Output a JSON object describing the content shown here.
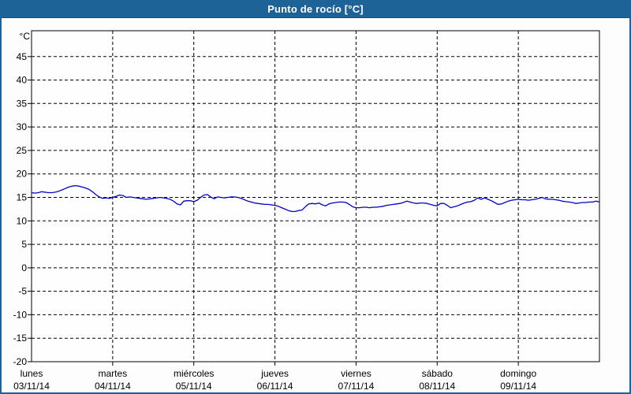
{
  "window": {
    "title": "Punto de rocío [°C]"
  },
  "colors": {
    "titlebar_bg": "#1d6398",
    "titlebar_border": "#155078",
    "frame_border": "#1d6398",
    "title_text": "#ffffff",
    "series_line": "#0000c8",
    "grid": "#000000",
    "axis_text": "#000000",
    "page_bg": "#fdfdfd",
    "plot_bg": "#fefefe"
  },
  "chart_data": {
    "type": "line",
    "title": "Punto de rocío [°C]",
    "xlabel": "",
    "ylabel": "°C",
    "ylim": [
      -20,
      50.5
    ],
    "yticks": [
      45,
      40,
      35,
      30,
      25,
      20,
      15,
      10,
      5,
      0,
      -5,
      -10,
      -15,
      -20
    ],
    "grid": "dashed",
    "legend_position": "none",
    "x_axis": {
      "hours_per_day": 24,
      "days": [
        {
          "name": "lunes",
          "date": "03/11/14"
        },
        {
          "name": "martes",
          "date": "04/11/14"
        },
        {
          "name": "miércoles",
          "date": "05/11/14"
        },
        {
          "name": "jueves",
          "date": "06/11/14"
        },
        {
          "name": "viernes",
          "date": "07/11/14"
        },
        {
          "name": "sábado",
          "date": "08/11/14"
        },
        {
          "name": "domingo",
          "date": "09/11/14"
        }
      ]
    },
    "series": [
      {
        "name": "Punto de rocío",
        "unit": "°C",
        "color": "#0000c8",
        "step_hours": 1,
        "values": [
          16.0,
          15.9,
          16.0,
          16.2,
          16.1,
          16.0,
          16.0,
          16.1,
          16.3,
          16.6,
          16.9,
          17.2,
          17.4,
          17.5,
          17.4,
          17.2,
          17.0,
          16.7,
          16.2,
          15.6,
          15.1,
          14.8,
          14.9,
          14.8,
          15.0,
          15.2,
          15.5,
          15.4,
          15.0,
          15.1,
          15.0,
          14.9,
          14.8,
          14.7,
          14.6,
          14.7,
          14.8,
          14.9,
          15.0,
          14.9,
          14.8,
          14.6,
          14.2,
          13.6,
          13.4,
          14.2,
          14.3,
          14.3,
          14.1,
          14.4,
          15.0,
          15.5,
          15.6,
          15.1,
          14.7,
          15.1,
          15.0,
          14.9,
          15.0,
          15.1,
          15.1,
          15.0,
          14.8,
          14.5,
          14.2,
          14.0,
          13.8,
          13.7,
          13.6,
          13.5,
          13.5,
          13.4,
          13.3,
          13.1,
          12.8,
          12.5,
          12.2,
          12.0,
          12.0,
          12.2,
          12.3,
          13.0,
          13.6,
          13.7,
          13.6,
          13.8,
          13.4,
          13.2,
          13.6,
          13.8,
          13.9,
          14.0,
          14.0,
          13.9,
          13.5,
          13.0,
          12.8,
          12.8,
          12.9,
          12.9,
          12.8,
          12.9,
          12.9,
          13.0,
          13.1,
          13.3,
          13.4,
          13.5,
          13.6,
          13.7,
          13.9,
          14.2,
          14.0,
          13.8,
          13.7,
          13.8,
          13.8,
          13.7,
          13.5,
          13.3,
          13.2,
          13.7,
          13.7,
          13.3,
          12.8,
          13.0,
          13.2,
          13.5,
          13.8,
          14.0,
          14.1,
          14.4,
          14.9,
          14.6,
          14.9,
          14.6,
          14.3,
          13.9,
          13.5,
          13.6,
          13.9,
          14.2,
          14.4,
          14.5,
          14.6,
          14.5,
          14.5,
          14.4,
          14.5,
          14.6,
          14.8,
          15.0,
          14.7,
          14.6,
          14.6,
          14.5,
          14.4,
          14.2,
          14.1,
          14.0,
          13.9,
          13.7,
          13.8,
          13.9,
          13.9,
          14.0,
          14.0,
          14.2,
          14.0
        ]
      }
    ]
  }
}
